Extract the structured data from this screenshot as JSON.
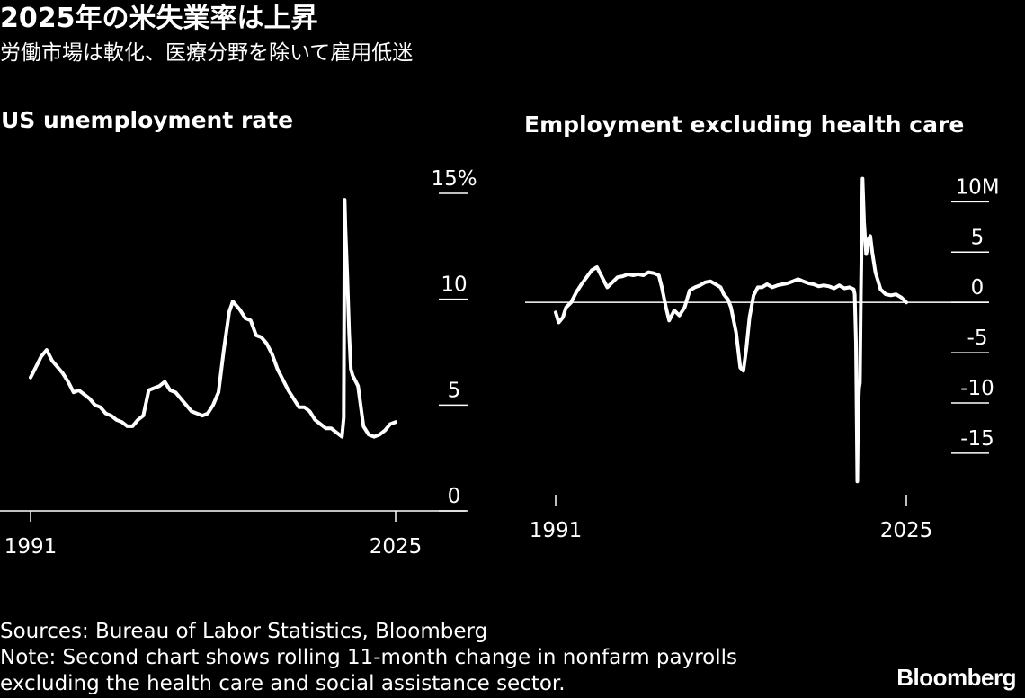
{
  "headline": "2025年の米失業率は上昇",
  "subheadline": "労働市場は軟化、医療分野を除いて雇用低迷",
  "footer": {
    "sources": "Sources: Bureau of Labor Statistics, Bloomberg",
    "note_line1": "Note: Second chart shows rolling 11-month change in nonfarm payrolls",
    "note_line2": "excluding the health care and social assistance sector."
  },
  "brand": "Bloomberg",
  "colors": {
    "background": "#000000",
    "foreground": "#ffffff"
  },
  "chart_data": [
    {
      "type": "line",
      "title": "US unemployment rate",
      "xlabel": "",
      "ylabel": "",
      "x_tick_labels": [
        "1991",
        "2025"
      ],
      "y_ticks": [
        {
          "value": 15,
          "label": "15%"
        },
        {
          "value": 10,
          "label": "10"
        },
        {
          "value": 5,
          "label": "5"
        },
        {
          "value": 0,
          "label": "0"
        }
      ],
      "xlim": [
        1991,
        2025
      ],
      "ylim": [
        0,
        15
      ],
      "grid": false,
      "legend": "none",
      "series": [
        {
          "x": [
            1991.0,
            1991.5,
            1992.0,
            1992.5,
            1993.0,
            1993.5,
            1994.0,
            1994.5,
            1995.0,
            1995.5,
            1996.0,
            1996.5,
            1997.0,
            1997.5,
            1998.0,
            1998.5,
            1999.0,
            1999.5,
            2000.0,
            2000.5,
            2001.0,
            2001.5,
            2002.0,
            2002.5,
            2003.0,
            2003.5,
            2004.0,
            2004.5,
            2005.0,
            2005.5,
            2006.0,
            2006.5,
            2007.0,
            2007.5,
            2008.0,
            2008.5,
            2009.0,
            2009.5,
            2009.83,
            2010.0,
            2010.5,
            2011.0,
            2011.5,
            2012.0,
            2012.5,
            2013.0,
            2013.5,
            2014.0,
            2014.5,
            2015.0,
            2015.5,
            2016.0,
            2016.5,
            2017.0,
            2017.5,
            2018.0,
            2018.5,
            2019.0,
            2019.5,
            2020.0,
            2020.17,
            2020.25,
            2020.33,
            2020.5,
            2020.67,
            2020.83,
            2021.0,
            2021.5,
            2022.0,
            2022.5,
            2023.0,
            2023.5,
            2024.0,
            2024.5,
            2025.0
          ],
          "y": [
            6.3,
            6.8,
            7.3,
            7.6,
            7.1,
            6.8,
            6.5,
            6.1,
            5.6,
            5.7,
            5.5,
            5.3,
            5.0,
            4.9,
            4.6,
            4.5,
            4.3,
            4.2,
            4.0,
            4.0,
            4.3,
            4.5,
            5.7,
            5.8,
            5.9,
            6.1,
            5.7,
            5.6,
            5.3,
            5.0,
            4.7,
            4.6,
            4.5,
            4.6,
            5.0,
            5.6,
            7.6,
            9.4,
            9.9,
            9.8,
            9.5,
            9.1,
            9.0,
            8.3,
            8.2,
            7.9,
            7.4,
            6.7,
            6.2,
            5.7,
            5.3,
            4.9,
            4.9,
            4.7,
            4.3,
            4.1,
            3.9,
            3.9,
            3.7,
            3.5,
            4.4,
            14.7,
            13.3,
            11.0,
            8.4,
            6.7,
            6.4,
            5.9,
            4.0,
            3.6,
            3.5,
            3.6,
            3.8,
            4.1,
            4.2
          ]
        }
      ]
    },
    {
      "type": "line",
      "title": "Employment excluding health care",
      "xlabel": "",
      "ylabel": "",
      "x_tick_labels": [
        "1991",
        "2025"
      ],
      "y_ticks": [
        {
          "value": 10,
          "label": "10M"
        },
        {
          "value": 5,
          "label": "5"
        },
        {
          "value": 0,
          "label": "0"
        },
        {
          "value": -5,
          "label": "-5"
        },
        {
          "value": -10,
          "label": "-10"
        },
        {
          "value": -15,
          "label": "-15"
        }
      ],
      "xlim": [
        1991,
        2025
      ],
      "ylim": [
        -18.5,
        12
      ],
      "grid": false,
      "legend": "none",
      "zero_line": true,
      "series": [
        {
          "x": [
            1991.0,
            1991.3,
            1991.7,
            1992.0,
            1992.5,
            1993.0,
            1993.5,
            1994.0,
            1994.5,
            1995.0,
            1995.5,
            1996.0,
            1996.5,
            1997.0,
            1997.5,
            1998.0,
            1998.5,
            1999.0,
            1999.5,
            2000.0,
            2000.5,
            2001.0,
            2001.3,
            2001.7,
            2002.0,
            2002.5,
            2003.0,
            2003.5,
            2004.0,
            2004.5,
            2005.0,
            2005.5,
            2006.0,
            2006.5,
            2007.0,
            2007.3,
            2007.7,
            2008.0,
            2008.5,
            2008.9,
            2009.2,
            2009.5,
            2009.8,
            2010.2,
            2010.6,
            2011.0,
            2011.5,
            2012.0,
            2012.5,
            2013.0,
            2013.5,
            2014.0,
            2014.5,
            2015.0,
            2015.5,
            2016.0,
            2016.5,
            2017.0,
            2017.5,
            2018.0,
            2018.5,
            2019.0,
            2019.5,
            2019.9,
            2020.0,
            2020.12,
            2020.25,
            2020.33,
            2020.42,
            2020.5,
            2020.6,
            2020.75,
            2020.9,
            2021.0,
            2021.1,
            2021.2,
            2021.35,
            2021.5,
            2021.7,
            2022.0,
            2022.5,
            2023.0,
            2023.5,
            2024.0,
            2024.5,
            2025.0
          ],
          "y": [
            -1.0,
            -2.0,
            -1.5,
            -0.5,
            0.0,
            1.0,
            1.8,
            2.5,
            3.2,
            3.5,
            2.5,
            1.5,
            2.0,
            2.5,
            2.6,
            2.8,
            2.7,
            2.8,
            2.7,
            3.0,
            2.9,
            2.7,
            1.5,
            -0.5,
            -1.8,
            -0.8,
            -1.3,
            -0.5,
            1.2,
            1.5,
            1.7,
            2.0,
            2.1,
            1.8,
            1.5,
            0.8,
            0.3,
            -0.5,
            -3.0,
            -6.5,
            -6.8,
            -4.5,
            -1.5,
            0.7,
            1.5,
            1.5,
            1.8,
            1.5,
            1.7,
            1.8,
            1.9,
            2.1,
            2.3,
            2.1,
            1.9,
            1.8,
            1.6,
            1.7,
            1.6,
            1.4,
            1.7,
            1.4,
            1.5,
            1.3,
            0.8,
            -4.0,
            -17.8,
            -10.5,
            -8.5,
            -8.0,
            1.0,
            12.3,
            8.0,
            6.5,
            4.8,
            5.2,
            6.3,
            6.6,
            5.0,
            3.0,
            1.3,
            0.8,
            0.7,
            0.8,
            0.5,
            0.0
          ]
        }
      ]
    }
  ]
}
